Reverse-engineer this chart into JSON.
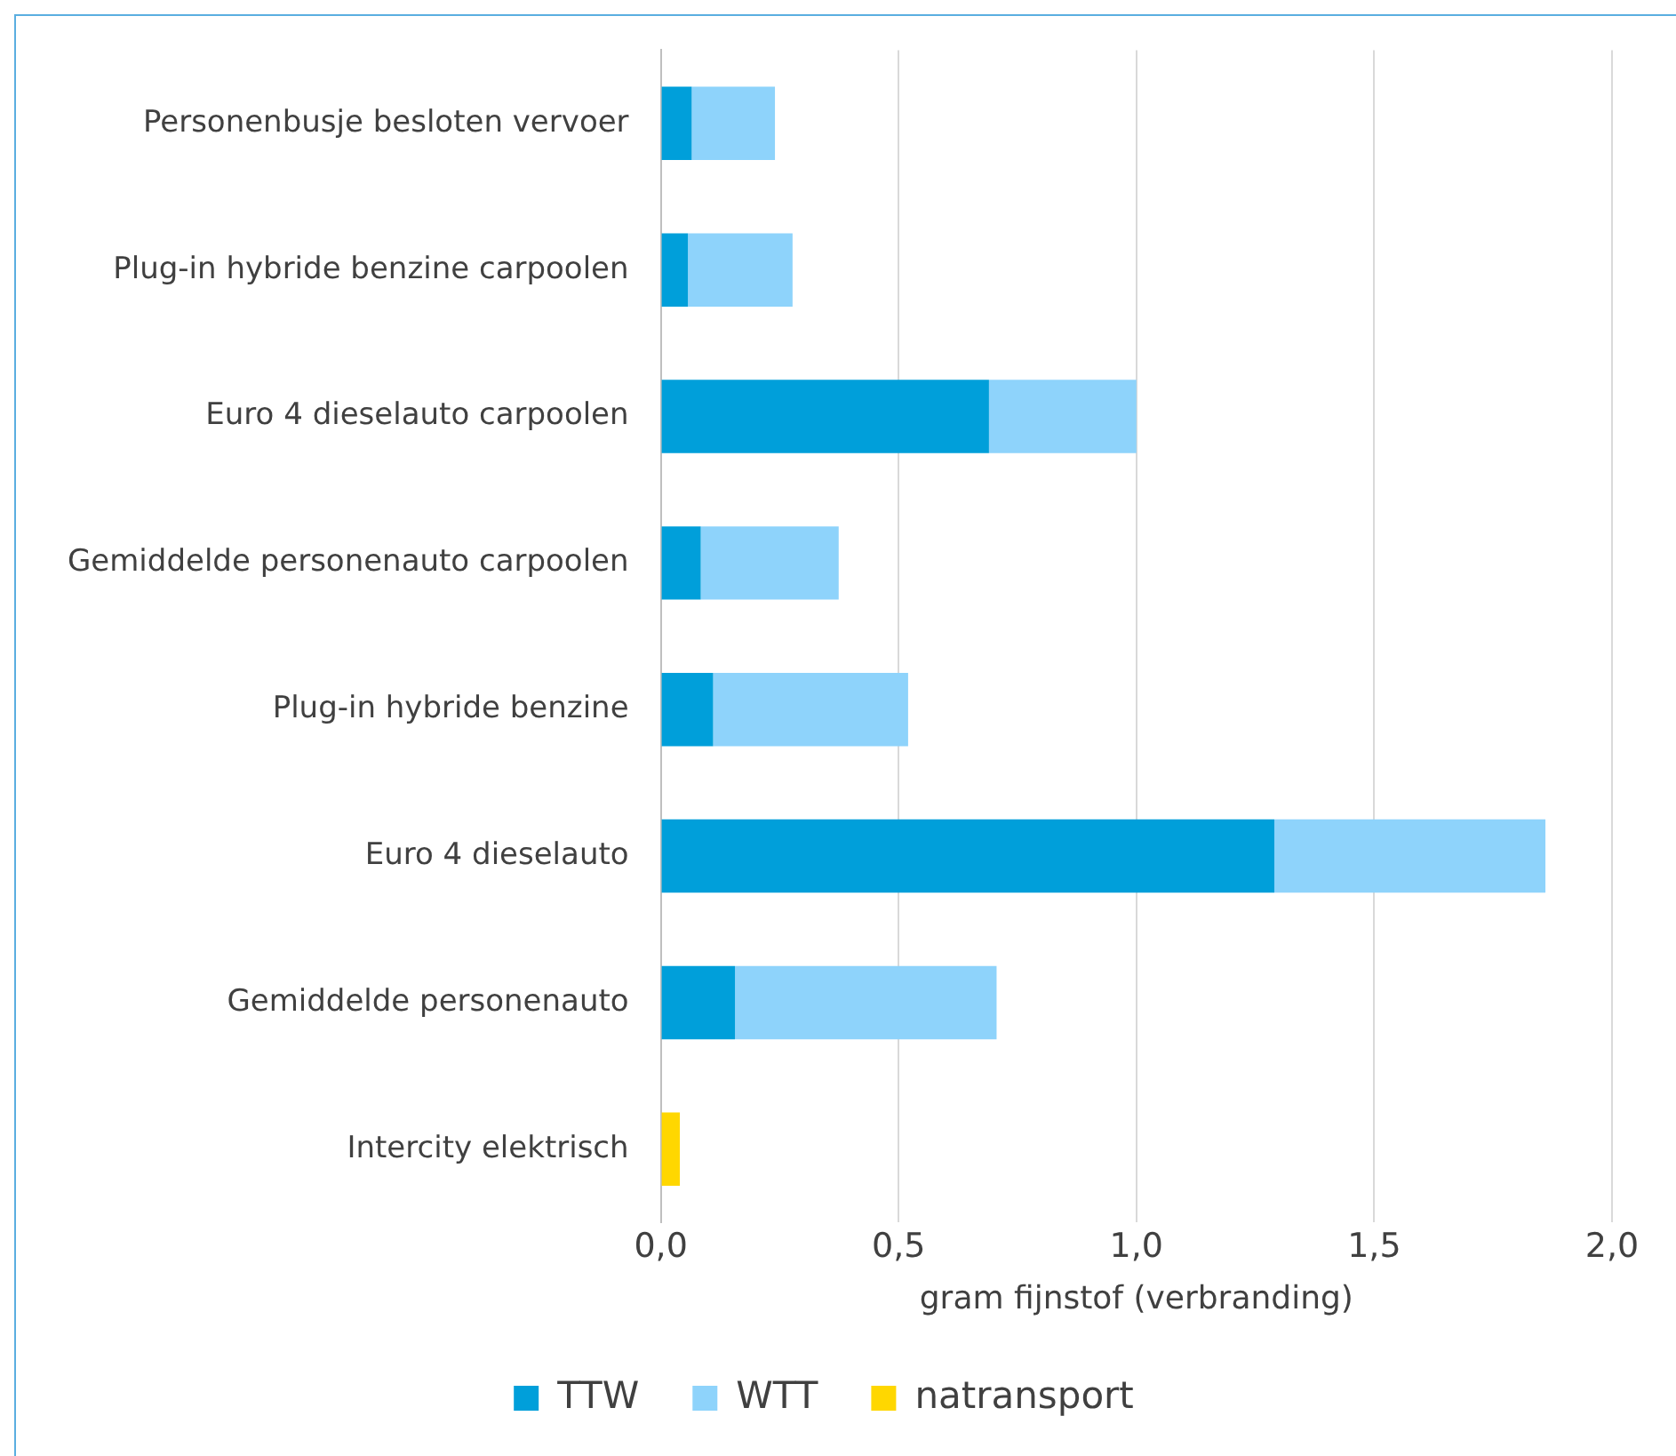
{
  "chart_data": {
    "type": "bar",
    "orientation": "horizontal",
    "stacked": true,
    "xlabel": "gram fijnstof (verbranding)",
    "categories": [
      "Personenbusje besloten vervoer",
      "Plug-in hybride benzine carpoolen",
      "Euro 4 dieselauto carpoolen",
      "Gemiddelde personenauto carpoolen",
      "Plug-in hybride benzine",
      "Euro 4 dieselauto",
      "Gemiddelde personenauto",
      "Intercity elektrisch"
    ],
    "series": [
      {
        "name": "TTW",
        "color": "#009fda",
        "values": [
          0.065,
          0.057,
          0.69,
          0.084,
          0.11,
          1.29,
          0.156,
          null
        ]
      },
      {
        "name": "WTT",
        "color": "#8ed3fb",
        "values": [
          0.175,
          0.22,
          0.31,
          0.29,
          0.41,
          0.57,
          0.55,
          null
        ]
      },
      {
        "name": "natransport",
        "color": "#ffd700",
        "values": [
          null,
          null,
          null,
          null,
          null,
          null,
          null,
          0.04
        ]
      }
    ],
    "xlim": [
      0,
      2
    ],
    "xticks": [
      {
        "value": 0,
        "label": "0,0"
      },
      {
        "value": 0.5,
        "label": "0,5"
      },
      {
        "value": 1,
        "label": "1,0"
      },
      {
        "value": 1.5,
        "label": "1,5"
      },
      {
        "value": 2,
        "label": "2,0"
      }
    ],
    "grid": "x",
    "legend": "bottom"
  }
}
